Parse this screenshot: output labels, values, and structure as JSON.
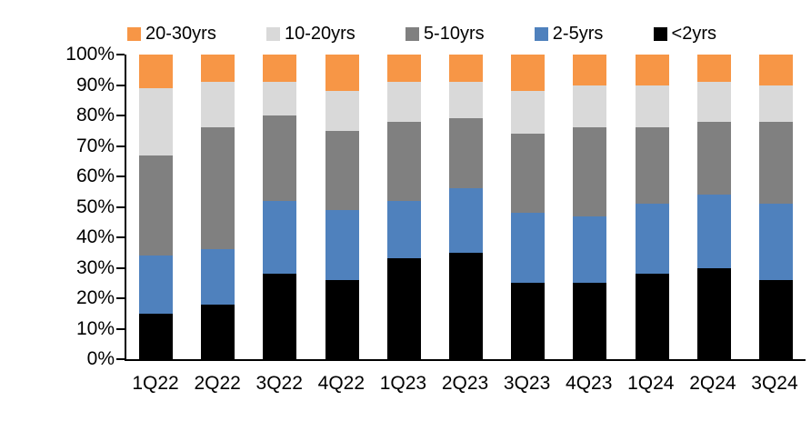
{
  "chart_data": {
    "type": "bar",
    "variant": "stacked-100-percent-column",
    "title": "",
    "xlabel": "",
    "ylabel": "",
    "grid": false,
    "background_color": "#FFFFFF",
    "axis_color": "#000000",
    "categories": [
      "1Q22",
      "2Q22",
      "3Q22",
      "4Q22",
      "1Q23",
      "2Q23",
      "3Q23",
      "4Q23",
      "1Q24",
      "2Q24",
      "3Q24"
    ],
    "series": [
      {
        "name": "<2yrs",
        "color": "#000000",
        "values": [
          15,
          18,
          28,
          26,
          33,
          35,
          25,
          25,
          28,
          30,
          26
        ]
      },
      {
        "name": "2-5yrs",
        "color": "#4F81BD",
        "values": [
          19,
          18,
          24,
          23,
          19,
          21,
          23,
          22,
          23,
          24,
          25
        ]
      },
      {
        "name": "5-10yrs",
        "color": "#808080",
        "values": [
          33,
          40,
          28,
          26,
          26,
          23,
          26,
          29,
          25,
          24,
          27
        ]
      },
      {
        "name": "10-20yrs",
        "color": "#D9D9D9",
        "values": [
          22,
          15,
          11,
          13,
          13,
          12,
          14,
          14,
          14,
          13,
          12
        ]
      },
      {
        "name": "20-30yrs",
        "color": "#F79646",
        "values": [
          11,
          9,
          9,
          12,
          9,
          9,
          12,
          10,
          10,
          9,
          10
        ]
      }
    ],
    "stack_order": "bottom-to-top",
    "y_axis": {
      "min": 0,
      "max": 100,
      "step": 10,
      "tick_labels": [
        "0%",
        "10%",
        "20%",
        "30%",
        "40%",
        "50%",
        "60%",
        "70%",
        "80%",
        "90%",
        "100%"
      ]
    },
    "legend": {
      "position": "top",
      "items": [
        {
          "label": "20-30yrs",
          "color": "#F79646"
        },
        {
          "label": "10-20yrs",
          "color": "#D9D9D9"
        },
        {
          "label": "5-10yrs",
          "color": "#808080"
        },
        {
          "label": "2-5yrs",
          "color": "#4F81BD"
        },
        {
          "label": "<2yrs",
          "color": "#000000"
        }
      ]
    }
  }
}
